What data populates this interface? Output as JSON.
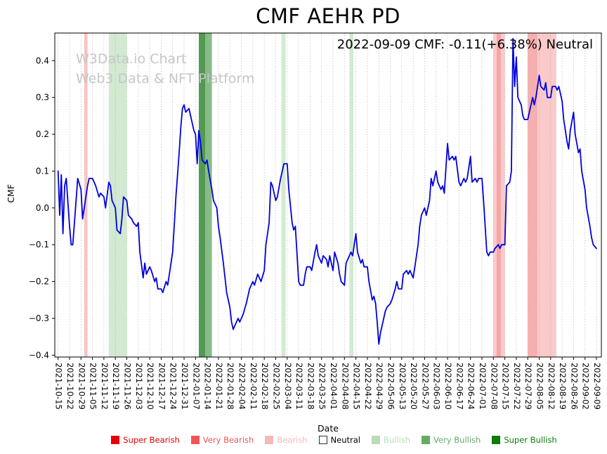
{
  "title": "CMF AEHR PD",
  "annotation": "2022-09-09 CMF: -0.11(+6.38%) Neutral",
  "watermark": {
    "line1": "W3Data.io Chart",
    "line2": "Web3 Data & NFT Platform"
  },
  "legend": {
    "items": [
      {
        "label": "Super Bearish",
        "color": "#e60000"
      },
      {
        "label": "Very Bearish",
        "color": "#f25555"
      },
      {
        "label": "Bearish",
        "color": "#f8b8b8"
      },
      {
        "label": "Neutral",
        "color": "#ffffff",
        "text_color": "#000000",
        "border": true
      },
      {
        "label": "Bullish",
        "color": "#b9dcb9"
      },
      {
        "label": "Very Bullish",
        "color": "#67aa67"
      },
      {
        "label": "Super Bullish",
        "color": "#0b7d0b"
      }
    ]
  },
  "chart_data": {
    "type": "line",
    "title": "CMF AEHR PD",
    "xlabel": "Date",
    "ylabel": "CMF",
    "grid": "vertical-dotted",
    "legend_position": "bottom",
    "line_color": "#0000dd",
    "ylim": [
      -0.405,
      0.475
    ],
    "xlim_days": [
      -2,
      332
    ],
    "x_start_date": "2021-10-15",
    "x_tick_interval_days": 7,
    "y_ticks": [
      0.4,
      0.3,
      0.2,
      0.1,
      0.0,
      -0.1,
      -0.2,
      -0.3,
      -0.4
    ],
    "x_tick_labels": [
      "2021-10-15",
      "2021-10-22",
      "2021-10-29",
      "2021-11-05",
      "2021-11-12",
      "2021-11-19",
      "2021-11-26",
      "2021-12-03",
      "2021-12-10",
      "2021-12-17",
      "2021-12-24",
      "2021-12-31",
      "2022-01-07",
      "2022-01-14",
      "2022-01-21",
      "2022-01-28",
      "2022-02-04",
      "2022-02-11",
      "2022-02-18",
      "2022-02-25",
      "2022-03-04",
      "2022-03-11",
      "2022-03-18",
      "2022-03-25",
      "2022-04-01",
      "2022-04-08",
      "2022-04-15",
      "2022-04-22",
      "2022-04-29",
      "2022-05-06",
      "2022-05-13",
      "2022-05-20",
      "2022-05-27",
      "2022-06-03",
      "2022-06-10",
      "2022-06-17",
      "2022-06-24",
      "2022-07-01",
      "2022-07-08",
      "2022-07-15",
      "2022-07-22",
      "2022-07-29",
      "2022-08-05",
      "2022-08-12",
      "2022-08-19",
      "2022-08-26",
      "2022-09-02",
      "2022-09-09"
    ],
    "bands": [
      {
        "label": "Bearish",
        "from": 16,
        "to": 18,
        "color": "#f8bcbc",
        "opacity": 0.9
      },
      {
        "label": "Bullish",
        "from": 31,
        "to": 42,
        "color": "#cde7cd",
        "opacity": 0.9
      },
      {
        "label": "Very Bullish",
        "from": 86,
        "to": 90,
        "color": "#3f8f3f",
        "opacity": 0.9
      },
      {
        "label": "Bullish",
        "from": 90,
        "to": 94,
        "color": "#79b679",
        "opacity": 0.9
      },
      {
        "label": "Bullish",
        "from": 136.5,
        "to": 139,
        "color": "#cde7cd",
        "opacity": 0.9
      },
      {
        "label": "Bullish",
        "from": 178,
        "to": 180.5,
        "color": "#cde7cd",
        "opacity": 0.9
      },
      {
        "label": "Bearish",
        "from": 266,
        "to": 273,
        "color": "#f9c4c4",
        "opacity": 0.9
      },
      {
        "label": "Very Bearish",
        "from": 268,
        "to": 270.5,
        "color": "#f5a0a0",
        "opacity": 0.9
      },
      {
        "label": "Very Bearish",
        "from": 287,
        "to": 293,
        "color": "#f5a6a6",
        "opacity": 0.9
      },
      {
        "label": "Bearish",
        "from": 293,
        "to": 304.5,
        "color": "#f9c4c4",
        "opacity": 0.9
      }
    ],
    "series": [
      {
        "name": "CMF",
        "points": [
          [
            0,
            0.1
          ],
          [
            1,
            -0.02
          ],
          [
            2,
            0.09
          ],
          [
            3,
            -0.07
          ],
          [
            4,
            0.06
          ],
          [
            5,
            0.08
          ],
          [
            7,
            -0.05
          ],
          [
            8,
            -0.1
          ],
          [
            9,
            -0.1
          ],
          [
            11,
            0.02
          ],
          [
            12,
            0.08
          ],
          [
            14,
            0.05
          ],
          [
            15,
            -0.03
          ],
          [
            16,
            0.0
          ],
          [
            18,
            0.06
          ],
          [
            19,
            0.08
          ],
          [
            21,
            0.08
          ],
          [
            23,
            0.06
          ],
          [
            25,
            0.03
          ],
          [
            26,
            0.04
          ],
          [
            28,
            0.03
          ],
          [
            29,
            0.0
          ],
          [
            31,
            0.07
          ],
          [
            32,
            0.06
          ],
          [
            33,
            0.02
          ],
          [
            35,
            0.0
          ],
          [
            36,
            -0.06
          ],
          [
            38,
            -0.07
          ],
          [
            39,
            -0.03
          ],
          [
            40,
            0.03
          ],
          [
            42,
            0.02
          ],
          [
            43,
            -0.02
          ],
          [
            45,
            -0.03
          ],
          [
            46,
            -0.04
          ],
          [
            48,
            -0.05
          ],
          [
            49,
            -0.04
          ],
          [
            50,
            -0.12
          ],
          [
            52,
            -0.19
          ],
          [
            53,
            -0.15
          ],
          [
            54,
            -0.18
          ],
          [
            56,
            -0.16
          ],
          [
            57,
            -0.17
          ],
          [
            59,
            -0.2
          ],
          [
            60,
            -0.19
          ],
          [
            61,
            -0.22
          ],
          [
            63,
            -0.22
          ],
          [
            64,
            -0.23
          ],
          [
            66,
            -0.2
          ],
          [
            67,
            -0.21
          ],
          [
            68,
            -0.18
          ],
          [
            70,
            -0.12
          ],
          [
            71,
            -0.05
          ],
          [
            72,
            0.03
          ],
          [
            74,
            0.15
          ],
          [
            75,
            0.22
          ],
          [
            76,
            0.27
          ],
          [
            77,
            0.28
          ],
          [
            78,
            0.26
          ],
          [
            80,
            0.27
          ],
          [
            81,
            0.25
          ],
          [
            83,
            0.21
          ],
          [
            84,
            0.2
          ],
          [
            85,
            0.12
          ],
          [
            86,
            0.21
          ],
          [
            87,
            0.18
          ],
          [
            88,
            0.13
          ],
          [
            90,
            0.12
          ],
          [
            91,
            0.13
          ],
          [
            92,
            0.1
          ],
          [
            94,
            0.05
          ],
          [
            95,
            0.02
          ],
          [
            97,
            0.0
          ],
          [
            98,
            -0.05
          ],
          [
            99,
            -0.08
          ],
          [
            101,
            -0.15
          ],
          [
            102,
            -0.19
          ],
          [
            103,
            -0.23
          ],
          [
            105,
            -0.27
          ],
          [
            106,
            -0.31
          ],
          [
            107,
            -0.33
          ],
          [
            108,
            -0.32
          ],
          [
            110,
            -0.3
          ],
          [
            111,
            -0.31
          ],
          [
            113,
            -0.29
          ],
          [
            115,
            -0.26
          ],
          [
            116,
            -0.24
          ],
          [
            117,
            -0.22
          ],
          [
            119,
            -0.2
          ],
          [
            120,
            -0.21
          ],
          [
            122,
            -0.18
          ],
          [
            123,
            -0.19
          ],
          [
            124,
            -0.2
          ],
          [
            126,
            -0.17
          ],
          [
            127,
            -0.1
          ],
          [
            129,
            -0.04
          ],
          [
            130,
            0.07
          ],
          [
            131,
            0.06
          ],
          [
            133,
            0.02
          ],
          [
            134,
            0.03
          ],
          [
            136,
            0.08
          ],
          [
            137,
            0.1
          ],
          [
            138,
            0.12
          ],
          [
            140,
            0.12
          ],
          [
            141,
            0.05
          ],
          [
            143,
            -0.04
          ],
          [
            144,
            -0.06
          ],
          [
            145,
            -0.05
          ],
          [
            147,
            -0.2
          ],
          [
            148,
            -0.21
          ],
          [
            150,
            -0.21
          ],
          [
            151,
            -0.18
          ],
          [
            152,
            -0.16
          ],
          [
            154,
            -0.16
          ],
          [
            155,
            -0.17
          ],
          [
            157,
            -0.12
          ],
          [
            158,
            -0.1
          ],
          [
            159,
            -0.13
          ],
          [
            161,
            -0.15
          ],
          [
            162,
            -0.13
          ],
          [
            164,
            -0.14
          ],
          [
            165,
            -0.16
          ],
          [
            166,
            -0.13
          ],
          [
            168,
            -0.17
          ],
          [
            169,
            -0.12
          ],
          [
            171,
            -0.15
          ],
          [
            172,
            -0.18
          ],
          [
            173,
            -0.2
          ],
          [
            175,
            -0.21
          ],
          [
            176,
            -0.15
          ],
          [
            178,
            -0.13
          ],
          [
            179,
            -0.12
          ],
          [
            180,
            -0.13
          ],
          [
            182,
            -0.07
          ],
          [
            183,
            -0.12
          ],
          [
            185,
            -0.15
          ],
          [
            186,
            -0.14
          ],
          [
            187,
            -0.16
          ],
          [
            189,
            -0.16
          ],
          [
            190,
            -0.2
          ],
          [
            192,
            -0.25
          ],
          [
            193,
            -0.24
          ],
          [
            194,
            -0.26
          ],
          [
            195,
            -0.31
          ],
          [
            196,
            -0.37
          ],
          [
            197,
            -0.34
          ],
          [
            199,
            -0.3
          ],
          [
            200,
            -0.28
          ],
          [
            201,
            -0.27
          ],
          [
            203,
            -0.26
          ],
          [
            204,
            -0.25
          ],
          [
            206,
            -0.22
          ],
          [
            207,
            -0.2
          ],
          [
            208,
            -0.22
          ],
          [
            210,
            -0.22
          ],
          [
            211,
            -0.18
          ],
          [
            213,
            -0.17
          ],
          [
            214,
            -0.18
          ],
          [
            215,
            -0.17
          ],
          [
            217,
            -0.19
          ],
          [
            218,
            -0.16
          ],
          [
            220,
            -0.1
          ],
          [
            221,
            -0.05
          ],
          [
            222,
            -0.02
          ],
          [
            224,
            0.0
          ],
          [
            225,
            -0.02
          ],
          [
            227,
            0.02
          ],
          [
            228,
            0.08
          ],
          [
            229,
            0.06
          ],
          [
            231,
            0.1
          ],
          [
            232,
            0.07
          ],
          [
            234,
            0.05
          ],
          [
            235,
            0.06
          ],
          [
            236,
            0.04
          ],
          [
            238,
            0.175
          ],
          [
            239,
            0.13
          ],
          [
            241,
            0.14
          ],
          [
            242,
            0.13
          ],
          [
            243,
            0.14
          ],
          [
            245,
            0.07
          ],
          [
            246,
            0.06
          ],
          [
            248,
            0.08
          ],
          [
            249,
            0.07
          ],
          [
            250,
            0.08
          ],
          [
            252,
            0.14
          ],
          [
            253,
            0.07
          ],
          [
            255,
            0.08
          ],
          [
            256,
            0.07
          ],
          [
            257,
            0.08
          ],
          [
            259,
            0.08
          ],
          [
            260,
            0.02
          ],
          [
            262,
            -0.12
          ],
          [
            263,
            -0.13
          ],
          [
            264,
            -0.12
          ],
          [
            266,
            -0.12
          ],
          [
            267,
            -0.11
          ],
          [
            269,
            -0.1
          ],
          [
            270,
            -0.11
          ],
          [
            271,
            -0.1
          ],
          [
            273,
            -0.1
          ],
          [
            274,
            0.06
          ],
          [
            276,
            0.07
          ],
          [
            277,
            0.1
          ],
          [
            278,
            0.46
          ],
          [
            279,
            0.33
          ],
          [
            280,
            0.41
          ],
          [
            281,
            0.3
          ],
          [
            283,
            0.28
          ],
          [
            284,
            0.25
          ],
          [
            285,
            0.24
          ],
          [
            287,
            0.24
          ],
          [
            288,
            0.26
          ],
          [
            290,
            0.3
          ],
          [
            291,
            0.28
          ],
          [
            292,
            0.3
          ],
          [
            294,
            0.36
          ],
          [
            295,
            0.33
          ],
          [
            297,
            0.32
          ],
          [
            298,
            0.34
          ],
          [
            299,
            0.3
          ],
          [
            301,
            0.3
          ],
          [
            302,
            0.33
          ],
          [
            304,
            0.33
          ],
          [
            305,
            0.32
          ],
          [
            306,
            0.33
          ],
          [
            308,
            0.29
          ],
          [
            309,
            0.24
          ],
          [
            311,
            0.18
          ],
          [
            312,
            0.16
          ],
          [
            313,
            0.21
          ],
          [
            315,
            0.26
          ],
          [
            316,
            0.2
          ],
          [
            318,
            0.15
          ],
          [
            319,
            0.16
          ],
          [
            320,
            0.1
          ],
          [
            322,
            0.05
          ],
          [
            323,
            0.0
          ],
          [
            325,
            -0.05
          ],
          [
            326,
            -0.08
          ],
          [
            327,
            -0.1
          ],
          [
            329,
            -0.11
          ]
        ]
      }
    ]
  }
}
